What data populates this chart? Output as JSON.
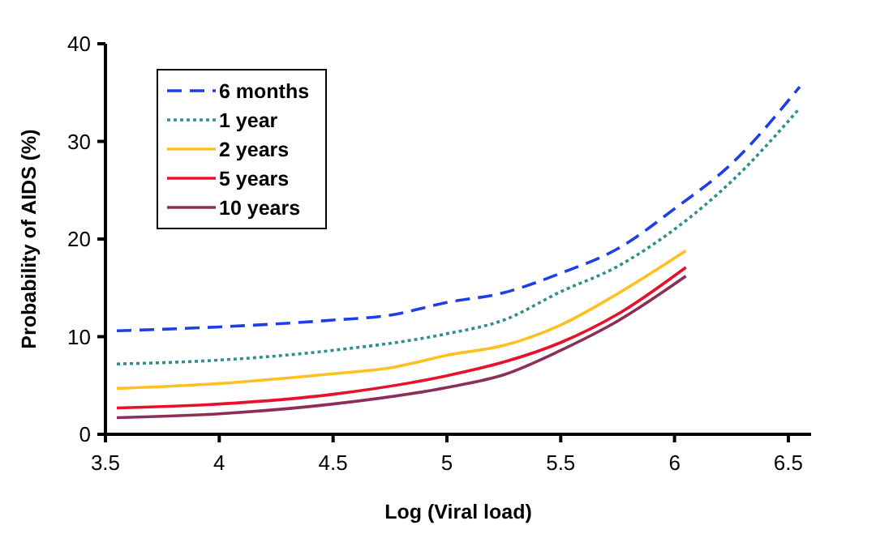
{
  "chart_data": {
    "type": "line",
    "xlabel": "Log (Viral load)",
    "ylabel": "Probability of AIDS (%)",
    "xlim": [
      3.5,
      6.6
    ],
    "xticks": [
      3.5,
      4,
      4.5,
      5,
      5.5,
      6,
      6.5
    ],
    "ylim": [
      0,
      40
    ],
    "yticks": [
      0,
      10,
      20,
      30,
      40
    ],
    "grid": false,
    "legend": "top left",
    "series": [
      {
        "name": "6 months",
        "color": "#1f3fe6",
        "line_style": "dashed",
        "x": [
          3.55,
          4,
          4.5,
          4.75,
          5,
          5.25,
          5.5,
          5.75,
          6,
          6.25,
          6.55
        ],
        "values": [
          10.6,
          11.0,
          11.7,
          12.2,
          13.5,
          14.5,
          16.5,
          19.0,
          23.1,
          27.7,
          35.6
        ]
      },
      {
        "name": "1 year",
        "color": "#2f8f8f",
        "line_style": "dotted",
        "x": [
          3.55,
          4,
          4.5,
          5,
          5.25,
          5.5,
          5.75,
          6,
          6.25,
          6.55
        ],
        "values": [
          7.2,
          7.6,
          8.6,
          10.3,
          11.7,
          14.6,
          17.2,
          21.0,
          25.9,
          33.4
        ]
      },
      {
        "name": "2 years",
        "color": "#ffc020",
        "line_style": "solid",
        "x": [
          3.55,
          4,
          4.5,
          4.75,
          5,
          5.25,
          5.5,
          5.75,
          6.05
        ],
        "values": [
          4.7,
          5.2,
          6.2,
          6.8,
          8.1,
          9.1,
          11.2,
          14.4,
          18.8
        ]
      },
      {
        "name": "5 years",
        "color": "#e8102a",
        "line_style": "solid",
        "x": [
          3.55,
          4,
          4.5,
          5,
          5.25,
          5.5,
          5.75,
          6.05
        ],
        "values": [
          2.7,
          3.1,
          4.1,
          6.0,
          7.4,
          9.4,
          12.3,
          17.1
        ]
      },
      {
        "name": "10 years",
        "color": "#8b2f5a",
        "line_style": "solid",
        "x": [
          3.55,
          4,
          4.5,
          5,
          5.25,
          5.5,
          5.75,
          6.05
        ],
        "values": [
          1.7,
          2.1,
          3.1,
          4.8,
          6.1,
          8.6,
          11.6,
          16.2
        ]
      }
    ]
  }
}
